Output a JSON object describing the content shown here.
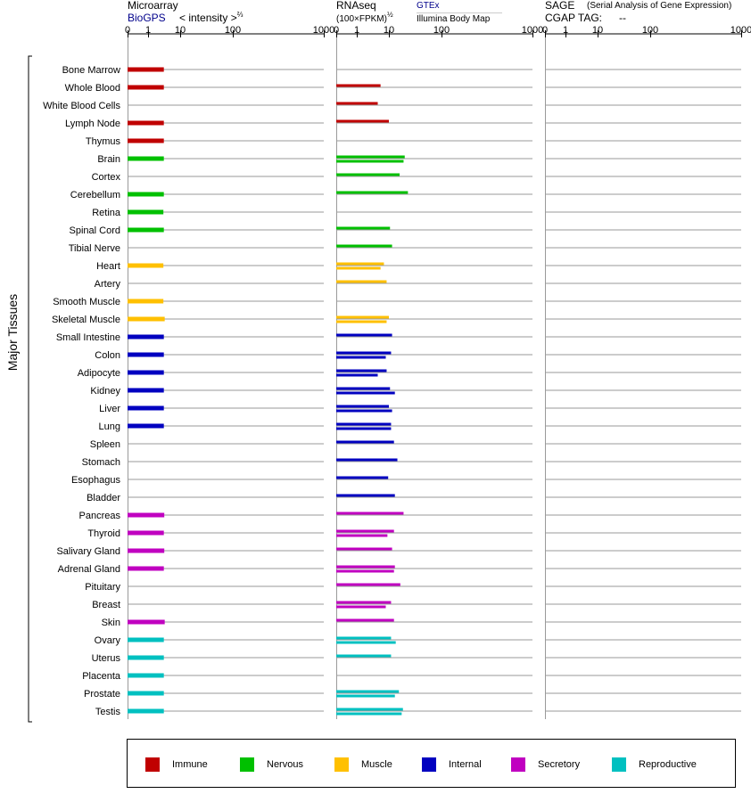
{
  "headers": {
    "microarray": {
      "title": "Microarray",
      "source": "BioGPS",
      "scale_label": "< intensity >",
      "scale_exp": "⅔"
    },
    "rnaseq": {
      "title": "RNAseq",
      "source1": "GTEx",
      "source2": "Illumina Body Map",
      "unit": "(100×FPKM)",
      "unit_exp": "½"
    },
    "sage": {
      "title": "SAGE",
      "subtitle": "(Serial Analysis of Gene Expression)",
      "tag_label": "CGAP TAG:",
      "tag_value": "--"
    }
  },
  "ylabel": "Major Tissues",
  "colors": {
    "Immune": "#c00000",
    "Nervous": "#00c000",
    "Muscle": "#ffc000",
    "Internal": "#0000c0",
    "Secretory": "#c000c0",
    "Reproductive": "#00c0c0"
  },
  "legend": [
    "Immune",
    "Nervous",
    "Muscle",
    "Internal",
    "Secretory",
    "Reproductive"
  ],
  "chart_data": {
    "type": "bar",
    "orientation": "horizontal",
    "title": "",
    "ylabel": "Major Tissues",
    "panels": [
      {
        "name": "Microarray",
        "xlabel": "< intensity >⅔",
        "xscale": "power 2/3",
        "xlim": [
          0,
          1000
        ],
        "ticks": [
          0,
          1,
          10,
          100,
          1000
        ]
      },
      {
        "name": "RNAseq",
        "xlabel": "(100×FPKM)½",
        "xscale": "power 1/2",
        "xlim": [
          0,
          1000
        ],
        "ticks": [
          0,
          1,
          10,
          100,
          1000
        ]
      },
      {
        "name": "SAGE",
        "xscale": "power 1/2",
        "xlim": [
          0,
          1000
        ],
        "ticks": [
          0,
          1,
          10,
          100,
          1000
        ]
      }
    ],
    "categories": [
      "Bone Marrow",
      "Whole Blood",
      "White Blood Cells",
      "Lymph Node",
      "Thymus",
      "Brain",
      "Cortex",
      "Cerebellum",
      "Retina",
      "Spinal Cord",
      "Tibial Nerve",
      "Heart",
      "Artery",
      "Smooth Muscle",
      "Skeletal Muscle",
      "Small Intestine",
      "Colon",
      "Adipocyte",
      "Kidney",
      "Liver",
      "Lung",
      "Spleen",
      "Stomach",
      "Esophagus",
      "Bladder",
      "Pancreas",
      "Thyroid",
      "Salivary Gland",
      "Adrenal Gland",
      "Pituitary",
      "Breast",
      "Skin",
      "Ovary",
      "Uterus",
      "Placenta",
      "Prostate",
      "Testis"
    ],
    "groups": [
      "Immune",
      "Immune",
      "Immune",
      "Immune",
      "Immune",
      "Nervous",
      "Nervous",
      "Nervous",
      "Nervous",
      "Nervous",
      "Nervous",
      "Muscle",
      "Muscle",
      "Muscle",
      "Muscle",
      "Internal",
      "Internal",
      "Internal",
      "Internal",
      "Internal",
      "Internal",
      "Internal",
      "Internal",
      "Internal",
      "Internal",
      "Secretory",
      "Secretory",
      "Secretory",
      "Secretory",
      "Secretory",
      "Secretory",
      "Secretory",
      "Reproductive",
      "Reproductive",
      "Reproductive",
      "Reproductive",
      "Reproductive"
    ],
    "series": [
      {
        "name": "Microarray",
        "values": [
          3.1,
          3.1,
          null,
          3.1,
          3.1,
          3.1,
          null,
          3.1,
          3.0,
          3.1,
          null,
          3.0,
          null,
          3.0,
          3.3,
          3.1,
          3.1,
          3.1,
          3.1,
          3.1,
          3.1,
          null,
          null,
          null,
          null,
          3.2,
          3.1,
          3.2,
          3.1,
          null,
          null,
          3.3,
          3.1,
          3.1,
          3.1,
          3.1,
          3.1
        ]
      },
      {
        "name": "RNAseq GTEx",
        "values": [
          null,
          5.5,
          4.5,
          10,
          null,
          20,
          16,
          23,
          null,
          10.5,
          11.5,
          7,
          8.5,
          null,
          10,
          11.5,
          11,
          8.5,
          10.5,
          10,
          11,
          12.5,
          14.5,
          9.5,
          13,
          19,
          12.5,
          11.5,
          13,
          16.5,
          11,
          12.5,
          11,
          11,
          null,
          15.5,
          18.5
        ]
      },
      {
        "name": "RNAseq Illumina Body Map",
        "values": [
          null,
          null,
          null,
          null,
          null,
          19,
          null,
          null,
          null,
          null,
          null,
          5.5,
          null,
          null,
          8.5,
          null,
          8,
          4.5,
          13,
          11.5,
          11,
          null,
          null,
          null,
          null,
          null,
          9,
          null,
          12.5,
          null,
          8,
          null,
          13.5,
          null,
          null,
          13,
          17.5
        ]
      },
      {
        "name": "SAGE",
        "values": [
          null,
          null,
          null,
          null,
          null,
          null,
          null,
          null,
          null,
          null,
          null,
          null,
          null,
          null,
          null,
          null,
          null,
          null,
          null,
          null,
          null,
          null,
          null,
          null,
          null,
          null,
          null,
          null,
          null,
          null,
          null,
          null,
          null,
          null,
          null,
          null,
          null
        ]
      }
    ]
  }
}
